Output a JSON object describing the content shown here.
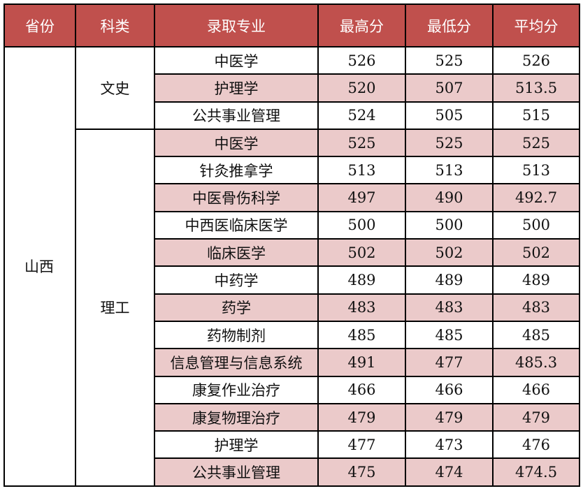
{
  "headers": [
    "省份",
    "科类",
    "录取专业",
    "最高分",
    "最低分",
    "平均分"
  ],
  "province": "山西",
  "groups": [
    {
      "category": "文史",
      "rows": [
        [
          "中医学",
          "526",
          "525",
          "526"
        ],
        [
          "护理学",
          "520",
          "507",
          "513.5"
        ],
        [
          "公共事业管理",
          "524",
          "505",
          "515"
        ]
      ]
    },
    {
      "category": "理工",
      "rows": [
        [
          "中医学",
          "525",
          "525",
          "525"
        ],
        [
          "针灸推拿学",
          "513",
          "513",
          "513"
        ],
        [
          "中医骨伤科学",
          "497",
          "490",
          "492.7"
        ],
        [
          "中西医临床医学",
          "500",
          "500",
          "500"
        ],
        [
          "临床医学",
          "502",
          "502",
          "502"
        ],
        [
          "中药学",
          "489",
          "489",
          "489"
        ],
        [
          "药学",
          "483",
          "483",
          "483"
        ],
        [
          "药物制剂",
          "485",
          "485",
          "485"
        ],
        [
          "信息管理与信息系统",
          "491",
          "477",
          "485.3"
        ],
        [
          "康复作业治疗",
          "466",
          "466",
          "466"
        ],
        [
          "康复物理治疗",
          "479",
          "479",
          "479"
        ],
        [
          "护理学",
          "477",
          "473",
          "476"
        ],
        [
          "公共事业管理",
          "475",
          "474",
          "474.5"
        ]
      ]
    }
  ],
  "colors": {
    "header": "#C0504D",
    "stripe": "#EBCACA"
  }
}
